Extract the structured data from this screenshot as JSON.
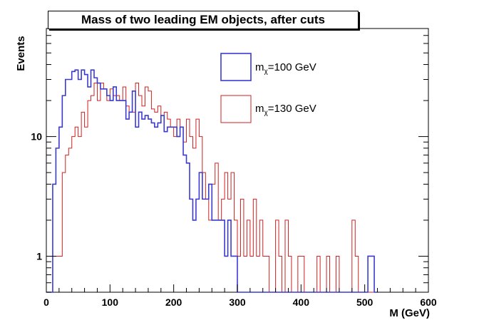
{
  "chart_data": {
    "type": "line",
    "title": "Mass of two leading EM objects, after cuts",
    "xlabel": "M (GeV)",
    "ylabel": "Events",
    "xlim": [
      0,
      600
    ],
    "ylim": [
      0.5,
      80
    ],
    "yscale": "log",
    "bin_width": 5,
    "grid": false,
    "legend_position": "top-right",
    "x_ticks": [
      0,
      100,
      200,
      300,
      400,
      500,
      600
    ],
    "y_ticks": [
      1,
      10
    ],
    "series": [
      {
        "name": "m_chi=100 GeV",
        "legend_main": "m",
        "legend_sub": "χ",
        "legend_suffix": "=100 GeV",
        "color": "#3a3ad0",
        "x_start": 0,
        "values": [
          0,
          0,
          4,
          8,
          12,
          22,
          30,
          30,
          35,
          36,
          30,
          36,
          33,
          26,
          36,
          31,
          28,
          25,
          25,
          22,
          20,
          26,
          20,
          20,
          20,
          14,
          16,
          24,
          12,
          16,
          14,
          15,
          14,
          13,
          12,
          13,
          15,
          11,
          12,
          12,
          12,
          10,
          12,
          7,
          6,
          3,
          2,
          3,
          5,
          3,
          3,
          4,
          2,
          2,
          2,
          2,
          1,
          2,
          1,
          1,
          0,
          0,
          0,
          0,
          0,
          0,
          0,
          0,
          0,
          0,
          0,
          0,
          0,
          0,
          0,
          0,
          0,
          0,
          0,
          0,
          0,
          0,
          0,
          0,
          0,
          0,
          0,
          0,
          0,
          0,
          0,
          0,
          0,
          0,
          0,
          0,
          0,
          0,
          0,
          0,
          0,
          1,
          1,
          0
        ]
      },
      {
        "name": "m_chi=130 GeV",
        "legend_main": "m",
        "legend_sub": "χ",
        "legend_suffix": "=130 GeV",
        "color": "#d02020",
        "x_start": 0,
        "values": [
          0,
          0,
          1,
          1,
          1,
          5,
          7,
          8,
          10,
          12,
          10,
          16,
          12,
          20,
          22,
          28,
          20,
          28,
          25,
          20,
          25,
          22,
          22,
          20,
          26,
          18,
          16,
          16,
          28,
          22,
          18,
          26,
          24,
          17,
          16,
          18,
          15,
          16,
          14,
          12,
          10,
          14,
          12,
          9,
          14,
          10,
          8,
          14,
          10,
          5,
          3,
          2,
          4,
          6,
          2,
          3,
          5,
          3,
          5,
          2,
          1,
          3,
          1,
          2,
          1,
          3,
          1,
          2,
          1,
          1,
          0,
          0,
          2,
          1,
          0,
          2,
          1,
          0,
          0,
          1,
          1,
          0,
          0,
          0,
          0,
          1,
          0,
          0,
          1,
          0,
          0,
          1,
          0,
          0,
          0,
          0,
          2,
          1,
          0,
          0,
          0,
          0,
          0,
          0
        ]
      }
    ]
  }
}
